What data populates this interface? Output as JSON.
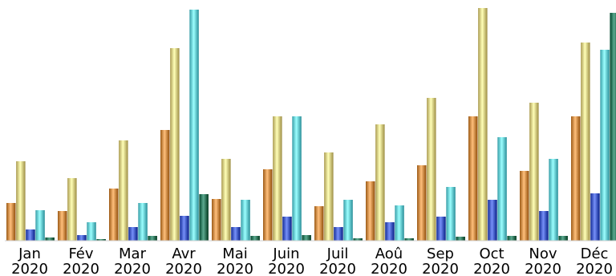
{
  "chart_data": {
    "type": "bar",
    "title": "",
    "xlabel": "",
    "ylabel": "",
    "categories": [
      [
        "Jan",
        "2020"
      ],
      [
        "Fév",
        "2020"
      ],
      [
        "Mar",
        "2020"
      ],
      [
        "Avr",
        "2020"
      ],
      [
        "Mai",
        "2020"
      ],
      [
        "Juin",
        "2020"
      ],
      [
        "Juil",
        "2020"
      ],
      [
        "Aoû",
        "2020"
      ],
      [
        "Sep",
        "2020"
      ],
      [
        "Oct",
        "2020"
      ],
      [
        "Nov",
        "2020"
      ],
      [
        "Déc",
        "2020"
      ]
    ],
    "series": [
      {
        "color": "#d4924e",
        "values": [
          47,
          37,
          65,
          138,
          52,
          89,
          43,
          74,
          94,
          155,
          87,
          155
        ]
      },
      {
        "color": "#e3d38a",
        "values": [
          99,
          78,
          125,
          240,
          102,
          155,
          110,
          145,
          178,
          290,
          172,
          247
        ]
      },
      {
        "color": "#4a63cc",
        "values": [
          14,
          7,
          17,
          31,
          17,
          30,
          17,
          23,
          30,
          51,
          37,
          59
        ]
      },
      {
        "color": "#6fd4de",
        "values": [
          38,
          23,
          47,
          288,
          51,
          155,
          51,
          44,
          67,
          129,
          102,
          238
        ]
      },
      {
        "color": "#2f7d63",
        "values": [
          4,
          2,
          6,
          58,
          6,
          7,
          3,
          3,
          5,
          6,
          6,
          284
        ]
      }
    ],
    "ylim": [
      0,
      284
    ],
    "grid": false,
    "legend": "none"
  }
}
